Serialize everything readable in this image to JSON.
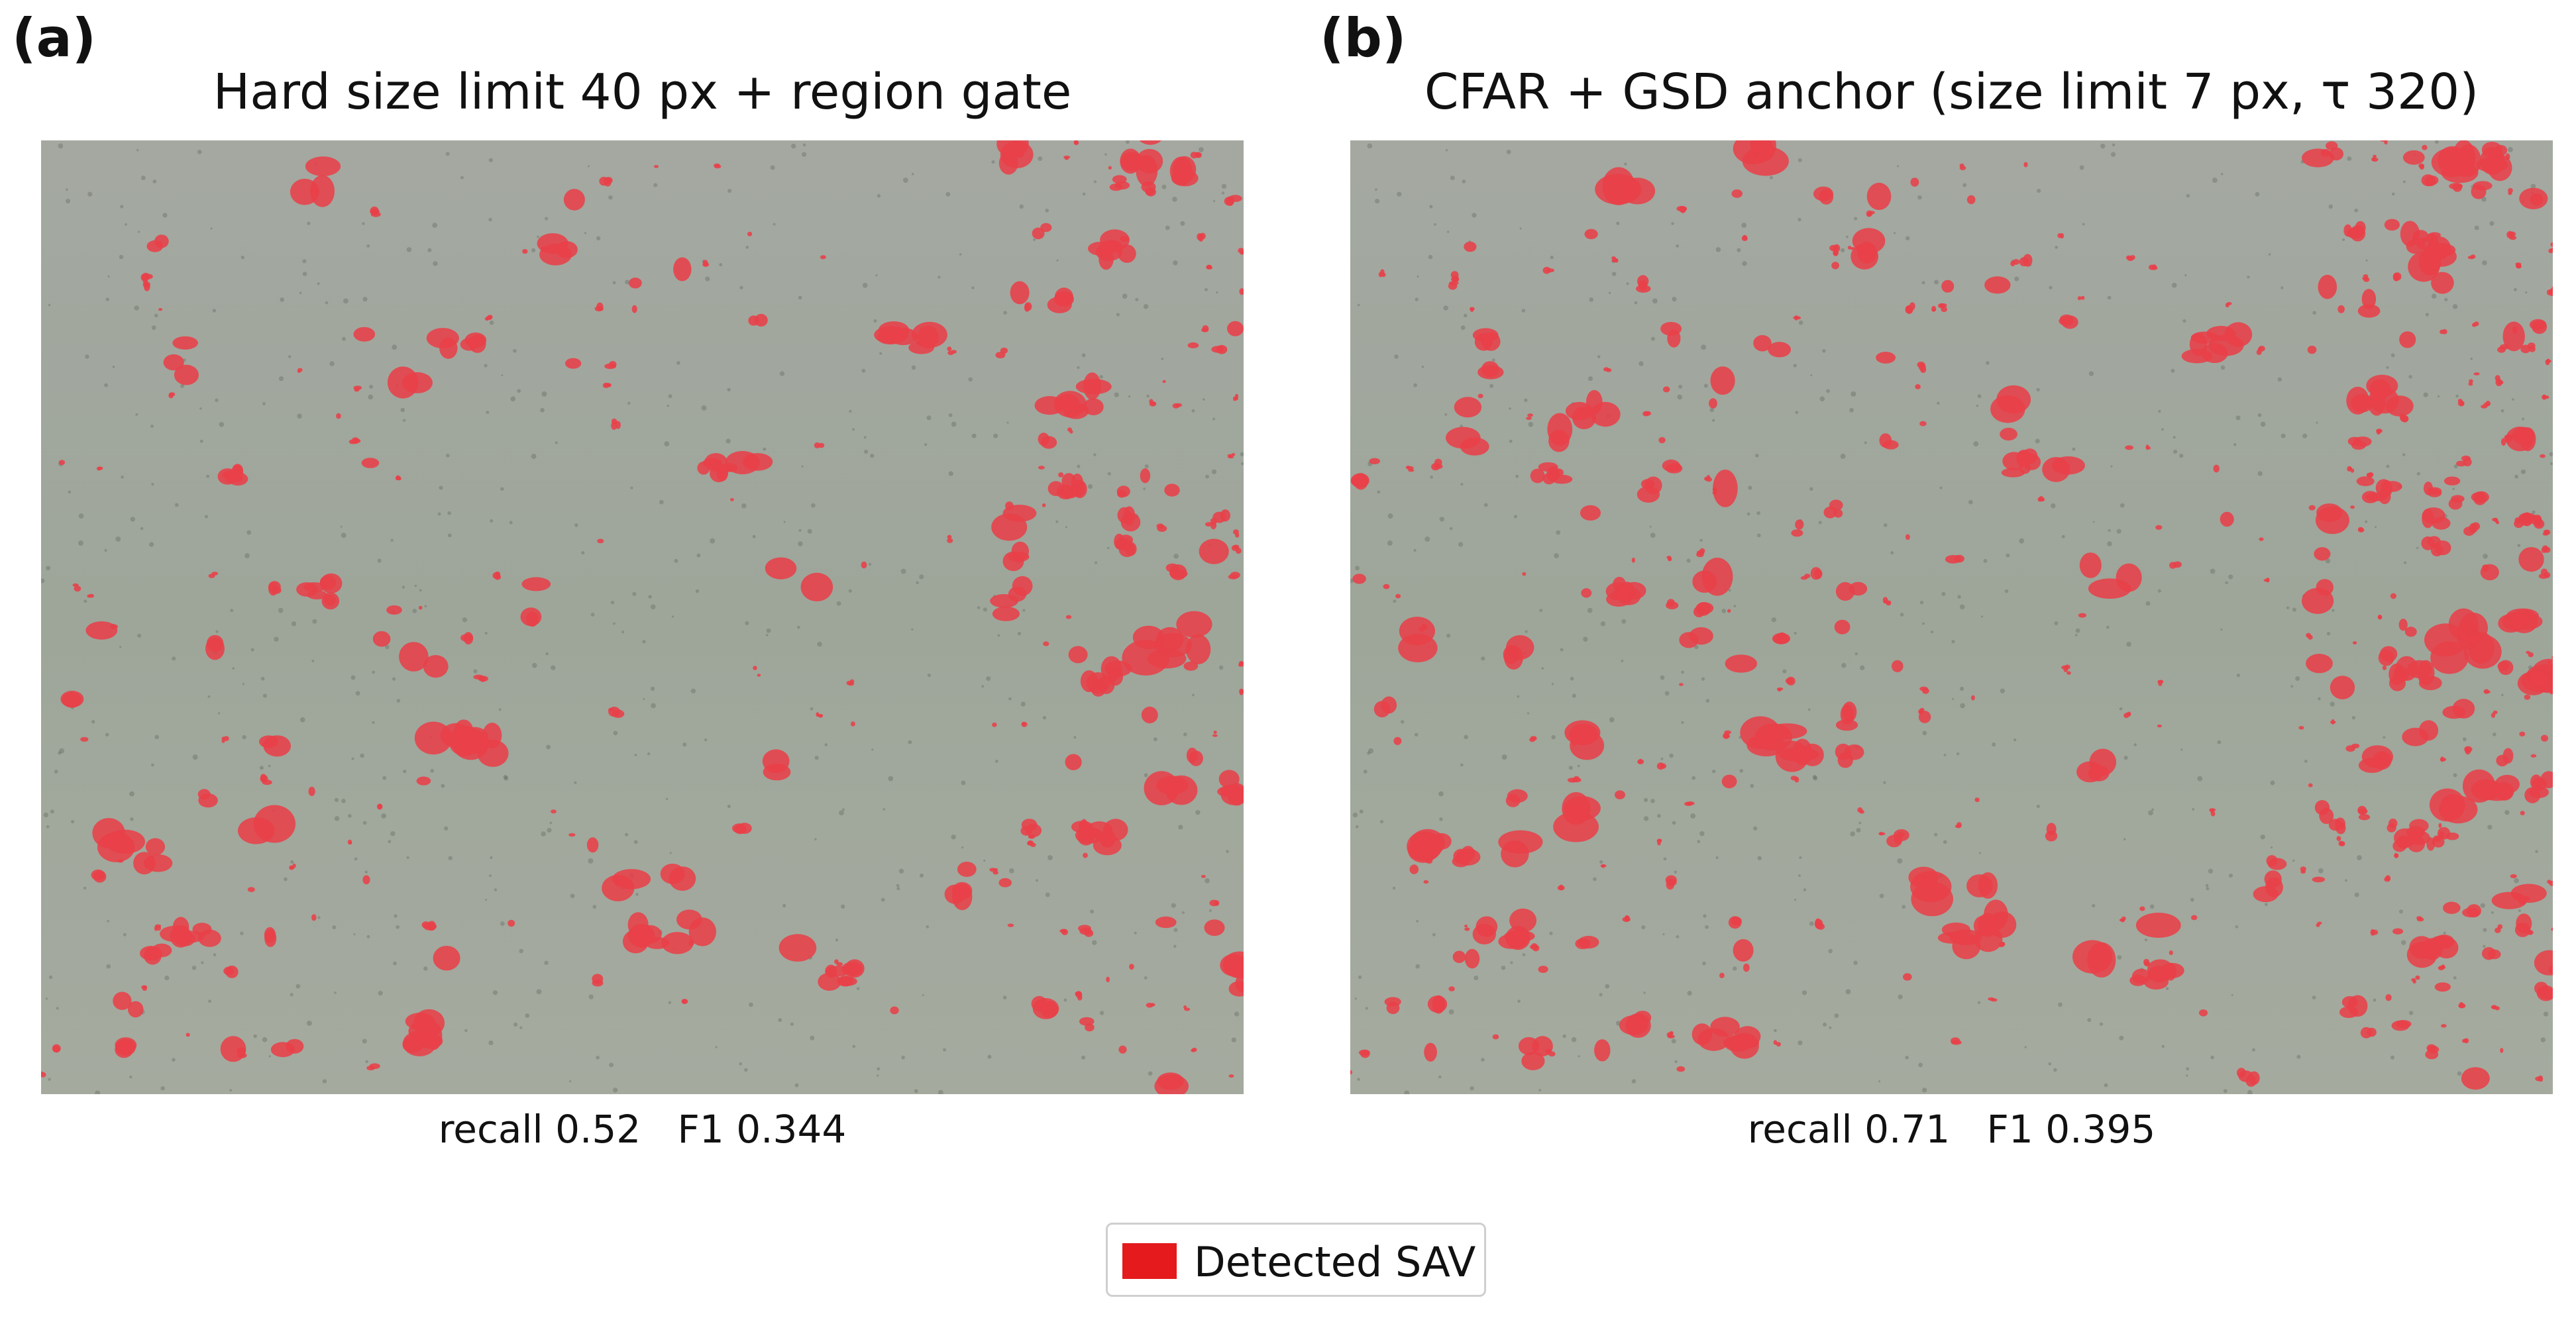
{
  "panels": [
    {
      "letter": "(a)",
      "title": "Hard size limit 40 px + region gate",
      "metrics": "recall 0.52   F1 0.344"
    },
    {
      "letter": "(b)",
      "title": "CFAR + GSD anchor  (size limit 7 px, τ 320)",
      "metrics": "recall 0.71   F1 0.395"
    }
  ],
  "legend": {
    "label": "Detected SAV",
    "color": "#e41a1c"
  },
  "colors": {
    "water": "#9ea69a",
    "detection": "#e84049"
  }
}
